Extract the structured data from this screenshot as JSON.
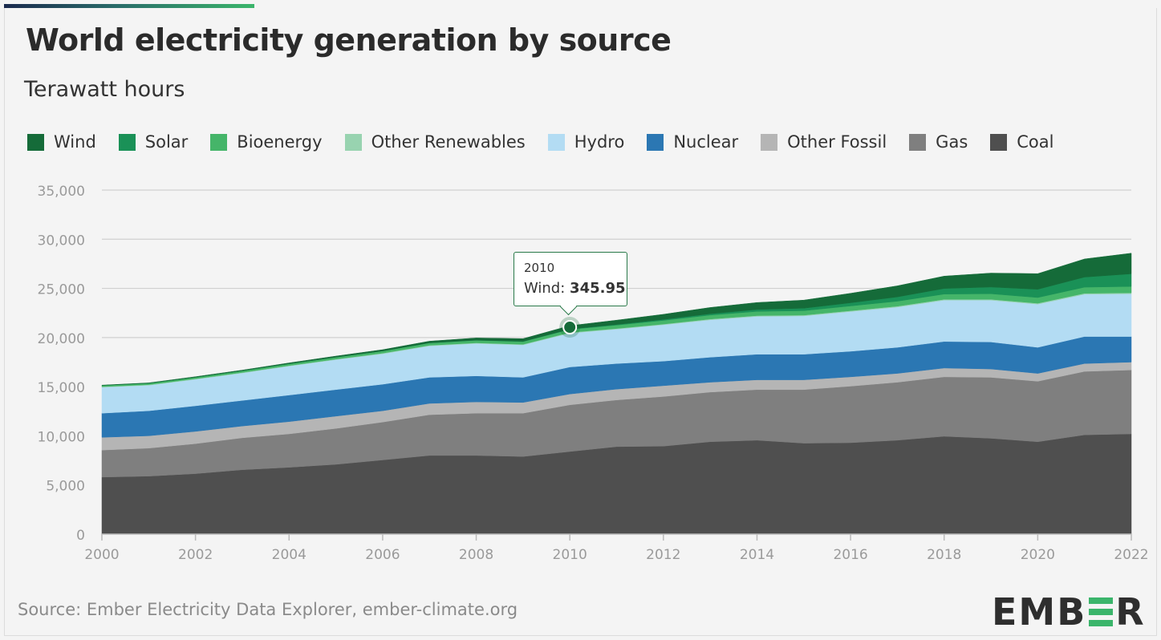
{
  "title": "World electricity generation by source",
  "subtitle": "Terawatt hours",
  "source": "Source: Ember Electricity Data Explorer, ember-climate.org",
  "logo": {
    "text_before": "EMB",
    "text_after": "R"
  },
  "tooltip": {
    "year": "2010",
    "series": "Wind",
    "value": "345.95"
  },
  "chart_data": {
    "type": "area",
    "stacked": true,
    "ylim": [
      0,
      35000
    ],
    "yticks": [
      0,
      5000,
      10000,
      15000,
      20000,
      25000,
      30000,
      35000
    ],
    "ytick_labels": [
      "0",
      "5,000",
      "10,000",
      "15,000",
      "20,000",
      "25,000",
      "30,000",
      "35,000"
    ],
    "xlim": [
      2000,
      2022
    ],
    "xticks": [
      2000,
      2002,
      2004,
      2006,
      2008,
      2010,
      2012,
      2014,
      2016,
      2018,
      2020,
      2022
    ],
    "xtick_labels": [
      "2000",
      "2002",
      "2004",
      "2006",
      "2008",
      "2010",
      "2012",
      "2014",
      "2016",
      "2018",
      "2020",
      "2022"
    ],
    "grid": true,
    "legend_position": "top",
    "x": [
      2000,
      2001,
      2002,
      2003,
      2004,
      2005,
      2006,
      2007,
      2008,
      2009,
      2010,
      2011,
      2012,
      2013,
      2014,
      2015,
      2016,
      2017,
      2018,
      2019,
      2020,
      2021,
      2022
    ],
    "series": [
      {
        "name": "Coal",
        "color": "#4f4f4f",
        "values": [
          5800,
          5900,
          6150,
          6550,
          6800,
          7100,
          7550,
          8000,
          8000,
          7900,
          8400,
          8900,
          8950,
          9400,
          9550,
          9250,
          9300,
          9550,
          9950,
          9750,
          9400,
          10100,
          10200
        ]
      },
      {
        "name": "Gas",
        "color": "#7f7f7f",
        "values": [
          2750,
          2850,
          3050,
          3250,
          3400,
          3650,
          3850,
          4150,
          4300,
          4400,
          4750,
          4750,
          5050,
          5050,
          5150,
          5450,
          5750,
          5900,
          6050,
          6200,
          6150,
          6450,
          6500
        ]
      },
      {
        "name": "Other Fossil",
        "color": "#b5b5b5",
        "values": [
          1300,
          1250,
          1250,
          1200,
          1250,
          1250,
          1150,
          1150,
          1150,
          1100,
          1100,
          1100,
          1100,
          1000,
          1000,
          1000,
          950,
          900,
          900,
          850,
          800,
          800,
          800
        ]
      },
      {
        "name": "Nuclear",
        "color": "#2b77b3",
        "values": [
          2450,
          2550,
          2600,
          2600,
          2700,
          2700,
          2700,
          2650,
          2650,
          2550,
          2750,
          2600,
          2500,
          2550,
          2600,
          2600,
          2600,
          2650,
          2700,
          2750,
          2650,
          2750,
          2600
        ]
      },
      {
        "name": "Hydro",
        "color": "#b3dcf3",
        "values": [
          2650,
          2600,
          2700,
          2800,
          2950,
          3050,
          3100,
          3200,
          3300,
          3300,
          3450,
          3500,
          3700,
          3800,
          3850,
          3900,
          4050,
          4100,
          4200,
          4250,
          4400,
          4300,
          4350
        ]
      },
      {
        "name": "Other Renewables",
        "color": "#98d3b0",
        "values": [
          50,
          50,
          50,
          50,
          50,
          50,
          60,
          60,
          60,
          60,
          70,
          70,
          70,
          80,
          80,
          80,
          80,
          90,
          90,
          90,
          90,
          100,
          100
        ]
      },
      {
        "name": "Bioenergy",
        "color": "#45b569",
        "values": [
          130,
          150,
          160,
          170,
          180,
          200,
          220,
          240,
          260,
          280,
          310,
          340,
          370,
          400,
          430,
          450,
          480,
          500,
          530,
          560,
          580,
          620,
          640
        ]
      },
      {
        "name": "Solar",
        "color": "#1a9157",
        "values": [
          1,
          2,
          2,
          3,
          4,
          5,
          6,
          8,
          12,
          20,
          32,
          63,
          100,
          140,
          190,
          250,
          330,
          440,
          570,
          690,
          840,
          1030,
          1290
        ]
      },
      {
        "name": "Wind",
        "color": "#156b39",
        "values": [
          31,
          38,
          52,
          63,
          85,
          104,
          132,
          170,
          220,
          276,
          345.95,
          440,
          520,
          640,
          710,
          830,
          960,
          1130,
          1260,
          1420,
          1590,
          1840,
          2100
        ]
      }
    ]
  }
}
